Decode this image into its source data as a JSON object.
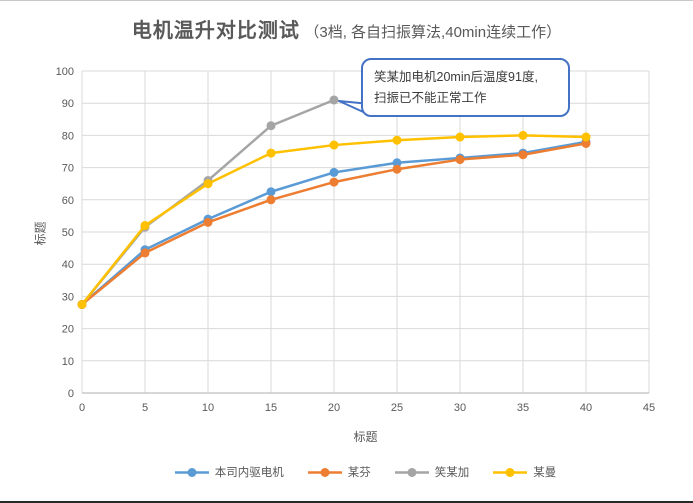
{
  "theme": {
    "background": "#FFFFFF",
    "grid_color": "#D9D9D9",
    "axis_line_color": "#BFBFBF",
    "text_color": "#595959",
    "callout_border_color": "#4472C4",
    "callout_text_color": "#3B3B3B"
  },
  "title": {
    "main": "电机温升对比测试",
    "sub": "（3档, 各自扫振算法,40min连续工作）"
  },
  "callout": {
    "line1": "笑某加电机20min后温度91度,",
    "line2": "扫振已不能正常工作",
    "anchor_x": 20,
    "anchor_y": 91
  },
  "x_axis_title": "标题",
  "y_axis_title": "标题",
  "chart_data": {
    "type": "line",
    "title": "电机温升对比测试（3档, 各自扫振算法,40min连续工作）",
    "xlabel": "标题",
    "ylabel": "标题",
    "xlim": [
      0,
      45
    ],
    "ylim": [
      0,
      100
    ],
    "x_ticks": [
      0,
      5,
      10,
      15,
      20,
      25,
      30,
      35,
      40,
      45
    ],
    "y_ticks": [
      0,
      10,
      20,
      30,
      40,
      50,
      60,
      70,
      80,
      90,
      100
    ],
    "grid": true,
    "legend_position": "bottom",
    "x": [
      0,
      5,
      10,
      15,
      20,
      25,
      30,
      35,
      40
    ],
    "series": [
      {
        "name": "本司内驱电机",
        "color": "#5B9BD5",
        "values": [
          27.5,
          44.5,
          54,
          62.5,
          68.5,
          71.5,
          73,
          74.5,
          78
        ]
      },
      {
        "name": "某芬",
        "color": "#ED7D31",
        "values": [
          27.5,
          43.5,
          53,
          60,
          65.5,
          69.5,
          72.5,
          74,
          77.5
        ]
      },
      {
        "name": "笑某加",
        "color": "#A5A5A5",
        "values": [
          27.5,
          51.5,
          66,
          83,
          91,
          null,
          null,
          null,
          null
        ]
      },
      {
        "name": "某曼",
        "color": "#FFC000",
        "values": [
          27.5,
          52,
          65,
          74.5,
          77,
          78.5,
          79.5,
          80,
          79.5
        ]
      }
    ],
    "annotation": "笑某加电机20min后温度91度, 扫振已不能正常工作 (指向笑某加 x=20, y=91)"
  }
}
